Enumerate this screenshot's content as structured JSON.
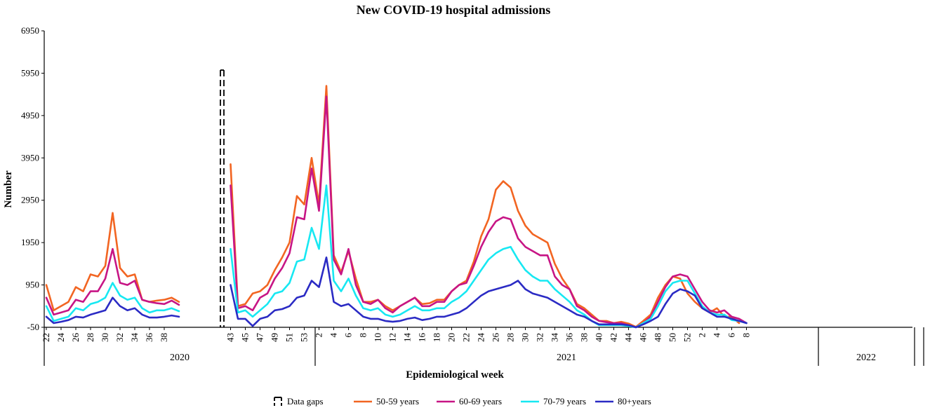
{
  "chart_data": {
    "type": "line",
    "title": "New COVID-19 hospital admissions",
    "xlabel": "Epidemiological week",
    "ylabel": "Number",
    "ylim": [
      -50,
      6950
    ],
    "y_ticks": [
      "6950",
      "5950",
      "4950",
      "3950",
      "2950",
      "1950",
      "950",
      "-50"
    ],
    "y_tick_values": [
      6950,
      5950,
      4950,
      3950,
      2950,
      1950,
      950,
      -50
    ],
    "x_tick_labels": [
      "22",
      "24",
      "26",
      "28",
      "30",
      "32",
      "34",
      "36",
      "38",
      "43",
      "45",
      "47",
      "49",
      "51",
      "53",
      "2",
      "4",
      "6",
      "8",
      "10",
      "12",
      "14",
      "16",
      "18",
      "20",
      "22",
      "24",
      "26",
      "28",
      "30",
      "32",
      "34",
      "36",
      "38",
      "40",
      "42",
      "44",
      "46",
      "48",
      "50",
      "52",
      "2",
      "4",
      "6",
      "8"
    ],
    "years": [
      "2020",
      "2021",
      "2022"
    ],
    "legend": [
      "Data gaps",
      "50-59 years",
      "60-69 years",
      "70-79 years",
      "80+years"
    ],
    "series": [
      {
        "name": "50-59 years",
        "color": "#f26522",
        "segments": [
          [
            950,
            350,
            450,
            550,
            900,
            800,
            1200,
            1150,
            1400,
            2650,
            1350,
            1150,
            1200,
            600,
            550,
            580,
            600,
            650,
            550
          ],
          [
            3800,
            450,
            500,
            750,
            800,
            950,
            1300,
            1600,
            1950,
            3050,
            2850,
            3950,
            2850,
            5650,
            1650,
            1250,
            1750,
            1100,
            550,
            550,
            600,
            450,
            350,
            450,
            550,
            650,
            500,
            520,
            600,
            600,
            800,
            950,
            1050,
            1500,
            2100,
            2500,
            3200,
            3400,
            3250,
            2700,
            2350,
            2150,
            2050,
            1950,
            1450,
            1100,
            850,
            500,
            400,
            250,
            100,
            100,
            50,
            80,
            40,
            -40,
            100,
            250,
            650,
            950,
            1150,
            1100,
            750,
            550,
            400,
            300,
            400,
            200,
            200,
            50
          ]
        ]
      },
      {
        "name": "60-69 years",
        "color": "#c71585",
        "segments": [
          [
            650,
            250,
            300,
            350,
            600,
            550,
            800,
            800,
            1100,
            1800,
            1000,
            950,
            1050,
            600,
            550,
            520,
            500,
            580,
            480
          ],
          [
            3300,
            400,
            450,
            350,
            650,
            750,
            1100,
            1350,
            1700,
            2550,
            2500,
            3700,
            2700,
            5400,
            1550,
            1200,
            1800,
            950,
            550,
            500,
            600,
            400,
            300,
            450,
            550,
            650,
            450,
            450,
            550,
            550,
            800,
            950,
            1000,
            1400,
            1850,
            2200,
            2450,
            2550,
            2500,
            2050,
            1850,
            1750,
            1650,
            1650,
            1150,
            950,
            850,
            450,
            350,
            200,
            100,
            70,
            50,
            50,
            0,
            -50,
            50,
            200,
            550,
            900,
            1150,
            1200,
            1150,
            850,
            550,
            350,
            300,
            350,
            200,
            150,
            50
          ]
        ]
      },
      {
        "name": "70-79 years",
        "color": "#17e8f2",
        "segments": [
          [
            450,
            100,
            150,
            200,
            400,
            350,
            500,
            550,
            650,
            1000,
            700,
            600,
            650,
            400,
            300,
            350,
            350,
            400,
            330
          ],
          [
            1800,
            300,
            350,
            200,
            350,
            500,
            750,
            800,
            1000,
            1500,
            1550,
            2300,
            1800,
            3300,
            1050,
            800,
            1100,
            700,
            400,
            350,
            400,
            250,
            200,
            250,
            350,
            450,
            350,
            350,
            400,
            400,
            550,
            650,
            800,
            1050,
            1300,
            1550,
            1700,
            1800,
            1850,
            1550,
            1300,
            1150,
            1050,
            1050,
            850,
            700,
            550,
            350,
            250,
            100,
            0,
            0,
            0,
            0,
            -20,
            -50,
            50,
            150,
            450,
            800,
            1000,
            1050,
            1050,
            750,
            450,
            300,
            250,
            250,
            120,
            100,
            50
          ]
        ]
      },
      {
        "name": "80+years",
        "color": "#2b2bc4",
        "segments": [
          [
            200,
            50,
            80,
            120,
            200,
            180,
            250,
            300,
            350,
            650,
            450,
            350,
            400,
            250,
            180,
            180,
            200,
            230,
            200
          ],
          [
            950,
            150,
            150,
            -20,
            150,
            200,
            350,
            380,
            450,
            650,
            700,
            1050,
            900,
            1600,
            550,
            450,
            500,
            350,
            200,
            150,
            150,
            100,
            80,
            100,
            150,
            180,
            120,
            150,
            200,
            200,
            250,
            300,
            400,
            550,
            700,
            800,
            850,
            900,
            950,
            1050,
            850,
            750,
            700,
            650,
            550,
            450,
            350,
            250,
            200,
            100,
            20,
            20,
            20,
            20,
            0,
            -50,
            20,
            100,
            200,
            500,
            750,
            850,
            800,
            700,
            400,
            300,
            200,
            200,
            150,
            100,
            50
          ]
        ]
      }
    ]
  }
}
